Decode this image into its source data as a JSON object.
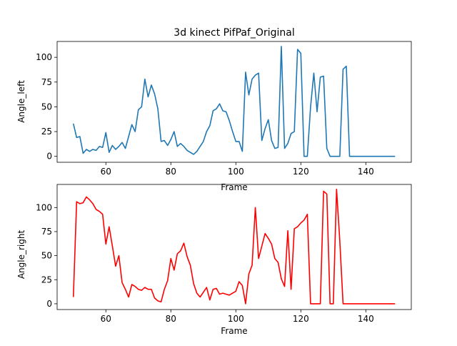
{
  "chart_data": [
    {
      "type": "line",
      "title": "3d kinect PifPaf_Original",
      "xlabel": "Frame",
      "ylabel": "Angle_left",
      "xlim": [
        45,
        154
      ],
      "ylim": [
        -6,
        116
      ],
      "xticks": [
        60,
        80,
        100,
        120,
        140
      ],
      "yticks": [
        0,
        25,
        50,
        75,
        100
      ],
      "grid": false,
      "color": "#1f77b4",
      "x_start": 50,
      "values": [
        33,
        19,
        20,
        3,
        7,
        5,
        7,
        6,
        10,
        9,
        24,
        4,
        11,
        7,
        10,
        14,
        8,
        20,
        32,
        25,
        47,
        50,
        78,
        60,
        72,
        63,
        48,
        15,
        16,
        11,
        17,
        25,
        10,
        13,
        10,
        6,
        4,
        2,
        5,
        10,
        15,
        25,
        31,
        46,
        48,
        53,
        46,
        45,
        36,
        25,
        15,
        15,
        5,
        85,
        62,
        78,
        82,
        84,
        16,
        28,
        37,
        16,
        8,
        9,
        111,
        8,
        13,
        23,
        25,
        108,
        104,
        0,
        0,
        50,
        84,
        45,
        80,
        81,
        8,
        0,
        0,
        0,
        0,
        88,
        91,
        0,
        0,
        0,
        0,
        0,
        0,
        0,
        0,
        0,
        0,
        0,
        0,
        0,
        0,
        0
      ]
    },
    {
      "type": "line",
      "title": "",
      "xlabel": "Frame",
      "ylabel": "Angle_right",
      "xlim": [
        45,
        154
      ],
      "ylim": [
        -6,
        124
      ],
      "xticks": [
        60,
        80,
        100,
        120,
        140
      ],
      "yticks": [
        0,
        25,
        50,
        75,
        100
      ],
      "grid": false,
      "color": "#ff0000",
      "x_start": 50,
      "values": [
        7,
        106,
        104,
        105,
        111,
        108,
        104,
        98,
        96,
        93,
        62,
        80,
        60,
        39,
        50,
        22,
        15,
        7,
        20,
        18,
        15,
        14,
        17,
        15,
        15,
        6,
        3,
        2,
        15,
        24,
        47,
        35,
        52,
        55,
        63,
        49,
        40,
        21,
        11,
        7,
        12,
        17,
        4,
        15,
        16,
        10,
        11,
        10,
        9,
        11,
        13,
        23,
        19,
        0,
        31,
        40,
        100,
        47,
        60,
        73,
        68,
        62,
        47,
        43,
        26,
        18,
        76,
        15,
        78,
        80,
        84,
        87,
        93,
        0,
        0,
        0,
        0,
        117,
        114,
        0,
        0,
        119,
        65,
        0,
        0,
        0,
        0,
        0,
        0,
        0,
        0,
        0,
        0,
        0,
        0,
        0,
        0,
        0,
        0,
        0
      ]
    }
  ]
}
